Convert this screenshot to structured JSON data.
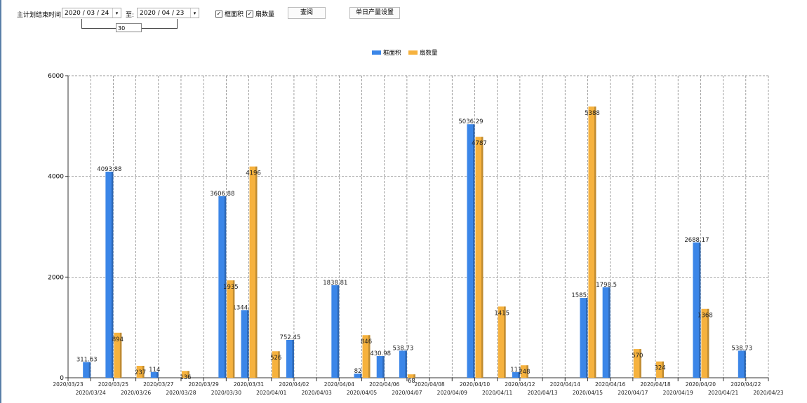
{
  "controls": {
    "label": "主计划结束时间:",
    "from": "2020 / 03 / 24",
    "to_label": "至:",
    "to": "2020 / 04 / 23",
    "days": "30",
    "check1": "框面积",
    "check2": "扇数量",
    "query": "查阅",
    "settings": "单日产量设置"
  },
  "chart_data": {
    "type": "bar",
    "colors": {
      "框面积": "#3b86e8",
      "扇数量": "#f6b23e"
    },
    "legend_position": "top-center",
    "grid": true,
    "ylim": [
      0,
      6000
    ],
    "yticks": [
      "0",
      "2000",
      "4000",
      "6000"
    ],
    "categories": [
      "2020/03/23",
      "2020/03/24",
      "2020/03/25",
      "2020/03/26",
      "2020/03/27",
      "2020/03/28",
      "2020/03/29",
      "2020/03/30",
      "2020/03/31",
      "2020/04/01",
      "2020/04/02",
      "2020/04/03",
      "2020/04/04",
      "2020/04/05",
      "2020/04/06",
      "2020/04/07",
      "2020/04/08",
      "2020/04/09",
      "2020/04/10",
      "2020/04/11",
      "2020/04/12",
      "2020/04/13",
      "2020/04/14",
      "2020/04/15",
      "2020/04/16",
      "2020/04/17",
      "2020/04/18",
      "2020/04/19",
      "2020/04/20",
      "2020/04/21",
      "2020/04/22",
      "2020/04/23"
    ],
    "series": [
      {
        "name": "框面积",
        "values": [
          null,
          311.63,
          4093.88,
          null,
          114,
          null,
          null,
          3606.88,
          1344.95,
          null,
          752.45,
          null,
          1838.81,
          82,
          430.98,
          538.73,
          null,
          null,
          5036.29,
          null,
          111,
          null,
          null,
          1585.96,
          1798.5,
          null,
          null,
          null,
          2688.17,
          null,
          538.73,
          null
        ]
      },
      {
        "name": "扇数量",
        "values": [
          null,
          null,
          894,
          237,
          null,
          136,
          null,
          1935,
          4196,
          526,
          null,
          null,
          null,
          846,
          null,
          68,
          null,
          null,
          4787,
          1415,
          248,
          null,
          null,
          5388,
          null,
          570,
          324,
          null,
          1368,
          null,
          null,
          null
        ]
      }
    ]
  }
}
